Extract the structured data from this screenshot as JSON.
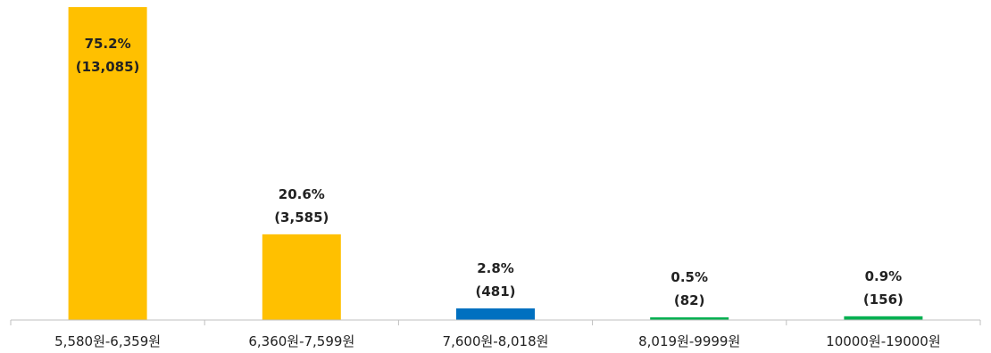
{
  "chart_data": {
    "type": "bar",
    "categories": [
      "5,580원-6,359원",
      "6,360원-7,599원",
      "7,600원-8,018원",
      "8,019원-9999원",
      "10000원-19000원"
    ],
    "values": [
      75.2,
      20.6,
      2.8,
      0.5,
      0.9
    ],
    "counts": [
      13085,
      3585,
      481,
      82,
      156
    ],
    "percent_labels": [
      "75.2%",
      "20.6%",
      "2.8%",
      "0.5%",
      "0.9%"
    ],
    "count_labels": [
      "(13,085)",
      "(3,585)",
      "(481)",
      "(82)",
      "(156)"
    ],
    "colors": [
      "#FFC000",
      "#FFC000",
      "#0070C0",
      "#00B050",
      "#00B050"
    ],
    "ylim": [
      0,
      75.2
    ],
    "title": "",
    "xlabel": "",
    "ylabel": "",
    "grid": false,
    "legend": "none"
  }
}
